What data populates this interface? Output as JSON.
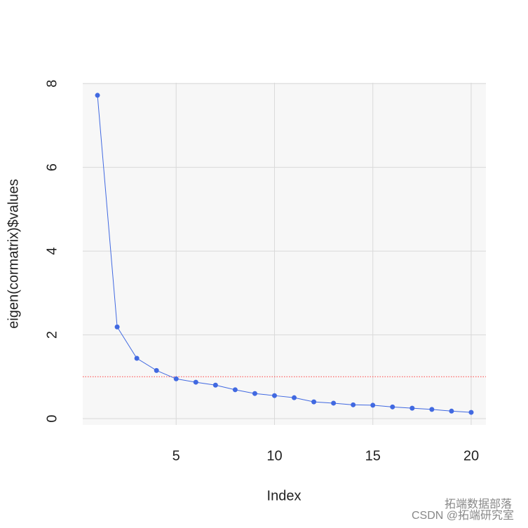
{
  "chart_data": {
    "type": "line",
    "x_label": "Index",
    "y_label": "eigen(cormatrix)$values",
    "x": [
      1,
      2,
      3,
      4,
      5,
      6,
      7,
      8,
      9,
      10,
      11,
      12,
      13,
      14,
      15,
      16,
      17,
      18,
      19,
      20
    ],
    "series": [
      {
        "color": "#4169e1",
        "values": [
          7.72,
          2.19,
          1.44,
          1.15,
          0.95,
          0.87,
          0.8,
          0.69,
          0.6,
          0.55,
          0.5,
          0.4,
          0.37,
          0.33,
          0.32,
          0.28,
          0.25,
          0.22,
          0.18,
          0.15
        ]
      }
    ],
    "xlim": [
      0.25,
      20.75
    ],
    "ylim": [
      -0.15,
      8.02
    ],
    "xticks": [
      5,
      10,
      15,
      20
    ],
    "yticks": [
      0,
      2,
      4,
      6,
      8
    ],
    "grid": true,
    "reference_line": {
      "value": 1,
      "color": "#ff4040"
    },
    "watermarks": [
      "拓端数据部落",
      "CSDN @拓端研究室"
    ]
  }
}
